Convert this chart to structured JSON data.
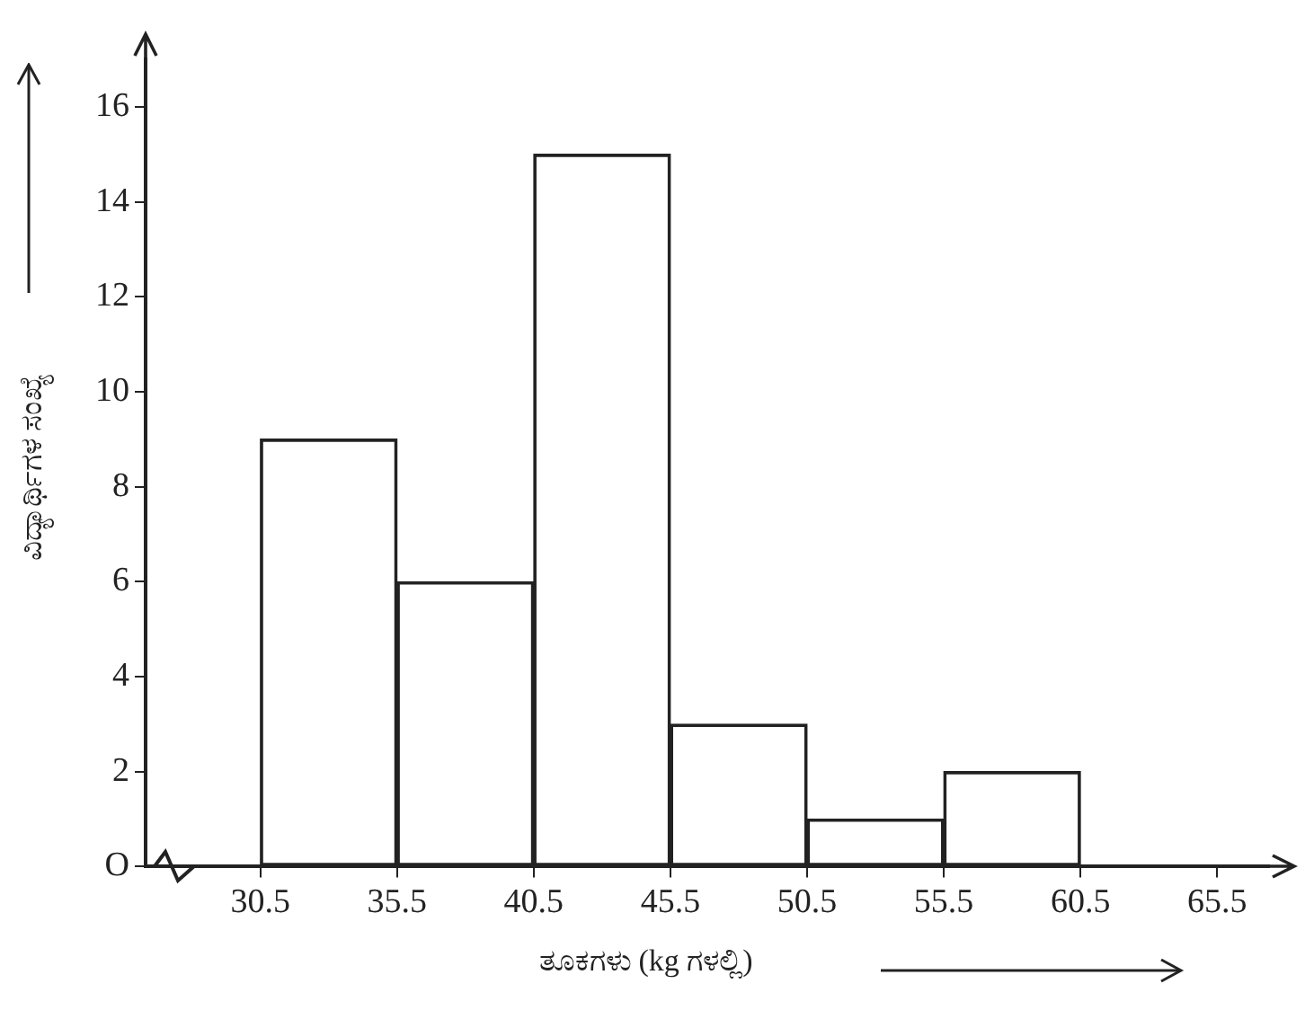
{
  "chart_data": {
    "type": "histogram",
    "xlabel": "ತೂಕಗಳು (kg ಗಳಲ್ಲಿ)",
    "ylabel": "ವಿದ್ಯಾರ್ಥಿಗಳ ಸಂಖ್ಯೆ",
    "bins": [
      30.5,
      35.5,
      40.5,
      45.5,
      50.5,
      55.5,
      60.5
    ],
    "values": [
      9,
      6,
      15,
      3,
      1,
      2
    ],
    "color": "#222222",
    "xlim": [
      26.3,
      67.4
    ],
    "xticks": [
      30.5,
      35.5,
      40.5,
      45.5,
      50.5,
      55.5,
      60.5,
      65.5
    ],
    "ylim": [
      0,
      17
    ],
    "yticks": [
      {
        "value": 0,
        "label": "O"
      },
      2,
      4,
      6,
      8,
      10,
      12,
      14,
      16
    ],
    "grid": false,
    "legend": false
  }
}
